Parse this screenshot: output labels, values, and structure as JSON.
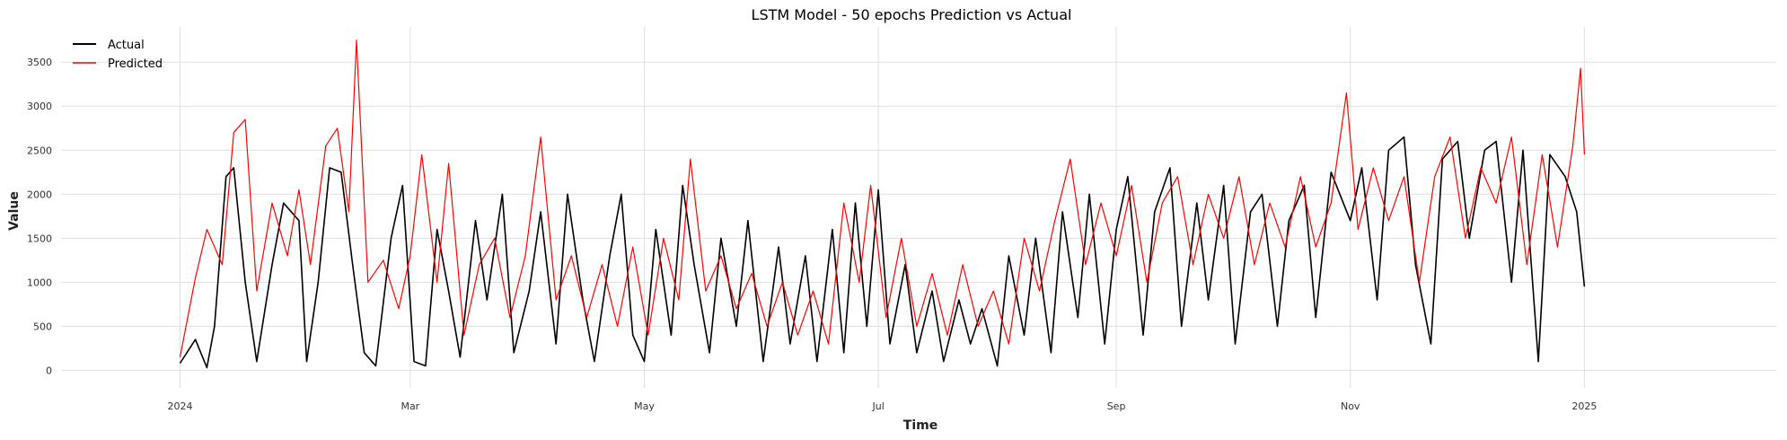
{
  "chart_data": {
    "type": "line",
    "title": "LSTM Model - 50 epochs Prediction vs Actual",
    "xlabel": "Time",
    "ylabel": "Value",
    "x_range": [
      "2023-12-01",
      "2025-02-20"
    ],
    "ylim": [
      -200,
      3900
    ],
    "grid": true,
    "legend_position": "top-left",
    "x_ticks": [
      {
        "date": "2024-01-01",
        "label": "2024"
      },
      {
        "date": "2024-03-01",
        "label": "Mar"
      },
      {
        "date": "2024-05-01",
        "label": "May"
      },
      {
        "date": "2024-07-01",
        "label": "Jul"
      },
      {
        "date": "2024-09-01",
        "label": "Sep"
      },
      {
        "date": "2024-11-01",
        "label": "Nov"
      },
      {
        "date": "2025-01-01",
        "label": "2025"
      }
    ],
    "y_ticks": [
      0,
      500,
      1000,
      1500,
      2000,
      2500,
      3000,
      3500
    ],
    "series": [
      {
        "name": "Actual",
        "color": "#000000",
        "points": [
          [
            "2024-01-01",
            80
          ],
          [
            "2024-01-05",
            350
          ],
          [
            "2024-01-08",
            30
          ],
          [
            "2024-01-10",
            500
          ],
          [
            "2024-01-13",
            2200
          ],
          [
            "2024-01-15",
            2300
          ],
          [
            "2024-01-18",
            1000
          ],
          [
            "2024-01-21",
            100
          ],
          [
            "2024-01-25",
            1200
          ],
          [
            "2024-01-28",
            1900
          ],
          [
            "2024-02-01",
            1700
          ],
          [
            "2024-02-03",
            100
          ],
          [
            "2024-02-06",
            1000
          ],
          [
            "2024-02-09",
            2300
          ],
          [
            "2024-02-12",
            2250
          ],
          [
            "2024-02-15",
            1200
          ],
          [
            "2024-02-18",
            200
          ],
          [
            "2024-02-21",
            50
          ],
          [
            "2024-02-25",
            1500
          ],
          [
            "2024-02-28",
            2100
          ],
          [
            "2024-03-02",
            100
          ],
          [
            "2024-03-05",
            50
          ],
          [
            "2024-03-08",
            1600
          ],
          [
            "2024-03-11",
            900
          ],
          [
            "2024-03-14",
            150
          ],
          [
            "2024-03-18",
            1700
          ],
          [
            "2024-03-21",
            800
          ],
          [
            "2024-03-25",
            2000
          ],
          [
            "2024-03-28",
            200
          ],
          [
            "2024-04-01",
            900
          ],
          [
            "2024-04-04",
            1800
          ],
          [
            "2024-04-08",
            300
          ],
          [
            "2024-04-11",
            2000
          ],
          [
            "2024-04-15",
            800
          ],
          [
            "2024-04-18",
            100
          ],
          [
            "2024-04-22",
            1300
          ],
          [
            "2024-04-25",
            2000
          ],
          [
            "2024-04-28",
            400
          ],
          [
            "2024-05-01",
            100
          ],
          [
            "2024-05-04",
            1600
          ],
          [
            "2024-05-08",
            400
          ],
          [
            "2024-05-11",
            2100
          ],
          [
            "2024-05-14",
            1200
          ],
          [
            "2024-05-18",
            200
          ],
          [
            "2024-05-21",
            1500
          ],
          [
            "2024-05-25",
            500
          ],
          [
            "2024-05-28",
            1700
          ],
          [
            "2024-06-01",
            100
          ],
          [
            "2024-06-05",
            1400
          ],
          [
            "2024-06-08",
            300
          ],
          [
            "2024-06-12",
            1300
          ],
          [
            "2024-06-15",
            100
          ],
          [
            "2024-06-19",
            1600
          ],
          [
            "2024-06-22",
            200
          ],
          [
            "2024-06-25",
            1900
          ],
          [
            "2024-06-28",
            500
          ],
          [
            "2024-07-01",
            2050
          ],
          [
            "2024-07-04",
            300
          ],
          [
            "2024-07-08",
            1200
          ],
          [
            "2024-07-11",
            200
          ],
          [
            "2024-07-15",
            900
          ],
          [
            "2024-07-18",
            100
          ],
          [
            "2024-07-22",
            800
          ],
          [
            "2024-07-25",
            300
          ],
          [
            "2024-07-28",
            700
          ],
          [
            "2024-08-01",
            50
          ],
          [
            "2024-08-04",
            1300
          ],
          [
            "2024-08-08",
            400
          ],
          [
            "2024-08-11",
            1500
          ],
          [
            "2024-08-15",
            200
          ],
          [
            "2024-08-18",
            1800
          ],
          [
            "2024-08-22",
            600
          ],
          [
            "2024-08-25",
            2000
          ],
          [
            "2024-08-29",
            300
          ],
          [
            "2024-09-01",
            1600
          ],
          [
            "2024-09-04",
            2200
          ],
          [
            "2024-09-08",
            400
          ],
          [
            "2024-09-11",
            1800
          ],
          [
            "2024-09-15",
            2300
          ],
          [
            "2024-09-18",
            500
          ],
          [
            "2024-09-22",
            1900
          ],
          [
            "2024-09-25",
            800
          ],
          [
            "2024-09-29",
            2100
          ],
          [
            "2024-10-02",
            300
          ],
          [
            "2024-10-06",
            1800
          ],
          [
            "2024-10-09",
            2000
          ],
          [
            "2024-10-13",
            500
          ],
          [
            "2024-10-16",
            1700
          ],
          [
            "2024-10-20",
            2100
          ],
          [
            "2024-10-23",
            600
          ],
          [
            "2024-10-27",
            2250
          ],
          [
            "2024-11-01",
            1700
          ],
          [
            "2024-11-04",
            2300
          ],
          [
            "2024-11-08",
            800
          ],
          [
            "2024-11-11",
            2500
          ],
          [
            "2024-11-15",
            2650
          ],
          [
            "2024-11-18",
            1200
          ],
          [
            "2024-11-22",
            300
          ],
          [
            "2024-11-25",
            2400
          ],
          [
            "2024-11-29",
            2600
          ],
          [
            "2024-12-02",
            1500
          ],
          [
            "2024-12-06",
            2500
          ],
          [
            "2024-12-09",
            2600
          ],
          [
            "2024-12-13",
            1000
          ],
          [
            "2024-12-16",
            2500
          ],
          [
            "2024-12-20",
            100
          ],
          [
            "2024-12-23",
            2450
          ],
          [
            "2024-12-27",
            2200
          ],
          [
            "2024-12-30",
            1800
          ],
          [
            "2025-01-01",
            950
          ]
        ]
      },
      {
        "name": "Predicted",
        "color": "#ff0000",
        "points": [
          [
            "2024-01-01",
            150
          ],
          [
            "2024-01-05",
            1050
          ],
          [
            "2024-01-08",
            1600
          ],
          [
            "2024-01-12",
            1200
          ],
          [
            "2024-01-15",
            2700
          ],
          [
            "2024-01-18",
            2850
          ],
          [
            "2024-01-21",
            900
          ],
          [
            "2024-01-25",
            1900
          ],
          [
            "2024-01-29",
            1300
          ],
          [
            "2024-02-01",
            2050
          ],
          [
            "2024-02-04",
            1200
          ],
          [
            "2024-02-08",
            2550
          ],
          [
            "2024-02-11",
            2750
          ],
          [
            "2024-02-14",
            1800
          ],
          [
            "2024-02-16",
            3750
          ],
          [
            "2024-02-19",
            1000
          ],
          [
            "2024-02-23",
            1250
          ],
          [
            "2024-02-27",
            700
          ],
          [
            "2024-03-01",
            1300
          ],
          [
            "2024-03-04",
            2450
          ],
          [
            "2024-03-08",
            1000
          ],
          [
            "2024-03-11",
            2350
          ],
          [
            "2024-03-15",
            400
          ],
          [
            "2024-03-19",
            1200
          ],
          [
            "2024-03-23",
            1500
          ],
          [
            "2024-03-27",
            600
          ],
          [
            "2024-03-31",
            1300
          ],
          [
            "2024-04-04",
            2650
          ],
          [
            "2024-04-08",
            800
          ],
          [
            "2024-04-12",
            1300
          ],
          [
            "2024-04-16",
            600
          ],
          [
            "2024-04-20",
            1200
          ],
          [
            "2024-04-24",
            500
          ],
          [
            "2024-04-28",
            1400
          ],
          [
            "2024-05-02",
            400
          ],
          [
            "2024-05-06",
            1500
          ],
          [
            "2024-05-10",
            800
          ],
          [
            "2024-05-13",
            2400
          ],
          [
            "2024-05-17",
            900
          ],
          [
            "2024-05-21",
            1300
          ],
          [
            "2024-05-25",
            700
          ],
          [
            "2024-05-29",
            1100
          ],
          [
            "2024-06-02",
            500
          ],
          [
            "2024-06-06",
            1000
          ],
          [
            "2024-06-10",
            400
          ],
          [
            "2024-06-14",
            900
          ],
          [
            "2024-06-18",
            300
          ],
          [
            "2024-06-22",
            1900
          ],
          [
            "2024-06-26",
            1000
          ],
          [
            "2024-06-29",
            2100
          ],
          [
            "2024-07-03",
            600
          ],
          [
            "2024-07-07",
            1500
          ],
          [
            "2024-07-11",
            500
          ],
          [
            "2024-07-15",
            1100
          ],
          [
            "2024-07-19",
            400
          ],
          [
            "2024-07-23",
            1200
          ],
          [
            "2024-07-27",
            500
          ],
          [
            "2024-07-31",
            900
          ],
          [
            "2024-08-04",
            300
          ],
          [
            "2024-08-08",
            1500
          ],
          [
            "2024-08-12",
            900
          ],
          [
            "2024-08-16",
            1700
          ],
          [
            "2024-08-20",
            2400
          ],
          [
            "2024-08-24",
            1200
          ],
          [
            "2024-08-28",
            1900
          ],
          [
            "2024-09-01",
            1300
          ],
          [
            "2024-09-05",
            2100
          ],
          [
            "2024-09-09",
            1000
          ],
          [
            "2024-09-13",
            1900
          ],
          [
            "2024-09-17",
            2200
          ],
          [
            "2024-09-21",
            1200
          ],
          [
            "2024-09-25",
            2000
          ],
          [
            "2024-09-29",
            1500
          ],
          [
            "2024-10-03",
            2200
          ],
          [
            "2024-10-07",
            1200
          ],
          [
            "2024-10-11",
            1900
          ],
          [
            "2024-10-15",
            1400
          ],
          [
            "2024-10-19",
            2200
          ],
          [
            "2024-10-23",
            1400
          ],
          [
            "2024-10-27",
            1900
          ],
          [
            "2024-10-31",
            3150
          ],
          [
            "2024-11-03",
            1600
          ],
          [
            "2024-11-07",
            2300
          ],
          [
            "2024-11-11",
            1700
          ],
          [
            "2024-11-15",
            2200
          ],
          [
            "2024-11-19",
            1000
          ],
          [
            "2024-11-23",
            2200
          ],
          [
            "2024-11-27",
            2650
          ],
          [
            "2024-12-01",
            1500
          ],
          [
            "2024-12-05",
            2300
          ],
          [
            "2024-12-09",
            1900
          ],
          [
            "2024-12-13",
            2650
          ],
          [
            "2024-12-17",
            1200
          ],
          [
            "2024-12-21",
            2450
          ],
          [
            "2024-12-25",
            1400
          ],
          [
            "2024-12-29",
            2550
          ],
          [
            "2024-12-31",
            3430
          ],
          [
            "2025-01-01",
            2450
          ]
        ]
      }
    ]
  }
}
